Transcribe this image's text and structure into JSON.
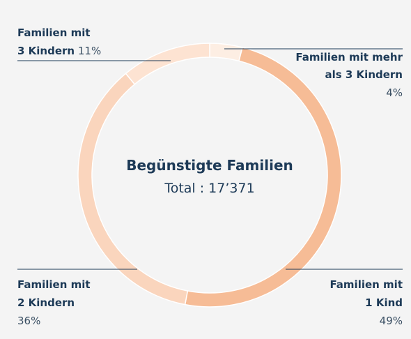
{
  "chart_data": {
    "type": "pie",
    "title": "Begünstigte Familien",
    "subtitle": "Total : 17’371",
    "categories": [
      "Familien mit mehr als 3 Kindern",
      "Familien mit 1 Kind",
      "Familien mit 2 Kindern",
      "Familien mit 3 Kindern"
    ],
    "values": [
      4,
      49,
      36,
      11
    ],
    "value_labels": [
      "4%",
      "49%",
      "36%",
      "11%"
    ],
    "colors": [
      "#fdeee3",
      "#f6bc96",
      "#fad5bd",
      "#fde3d2"
    ]
  }
}
